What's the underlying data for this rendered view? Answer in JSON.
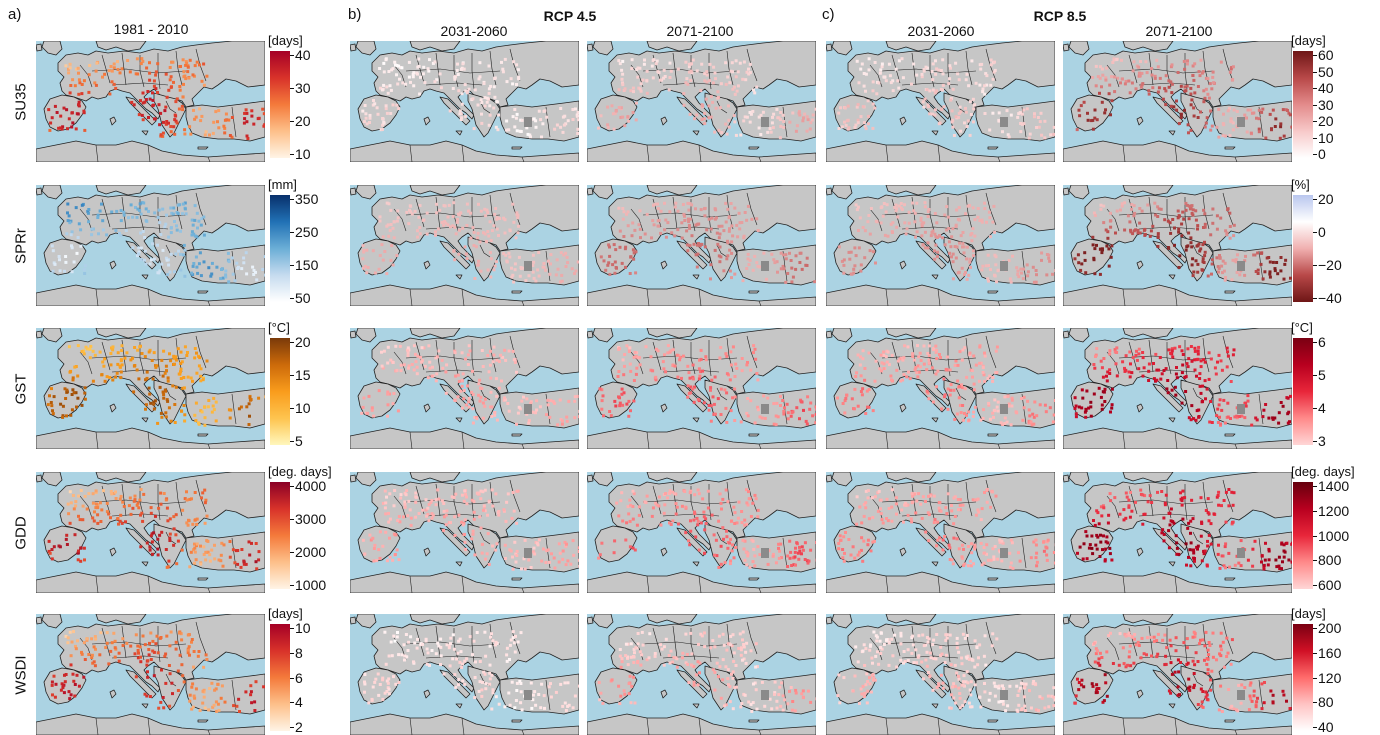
{
  "panel_labels": {
    "a": "a)",
    "b": "b)",
    "c": "c)"
  },
  "scenarios": {
    "rcp45": "RCP 4.5",
    "rcp85": "RCP 8.5"
  },
  "column_titles": {
    "baseline": "1981 - 2010",
    "rcp45_near": "2031-2060",
    "rcp45_far": "2071-2100",
    "rcp85_near": "2031-2060",
    "rcp85_far": "2071-2100"
  },
  "rows": [
    {
      "id": "su35",
      "label": "SU35"
    },
    {
      "id": "sprr",
      "label": "SPRr"
    },
    {
      "id": "gst",
      "label": "GST"
    },
    {
      "id": "gdd",
      "label": "GDD"
    },
    {
      "id": "wsdi",
      "label": "WSDI"
    }
  ],
  "colorbars": {
    "baseline": [
      {
        "unit": "[days]",
        "ticks": [
          "40",
          "30",
          "20",
          "10"
        ],
        "colors": [
          "#fff4e6",
          "#fdc08a",
          "#f47a3b",
          "#d8322a",
          "#a50026"
        ]
      },
      {
        "unit": "[mm]",
        "ticks": [
          "350",
          "250",
          "150",
          "50"
        ],
        "colors": [
          "#ffffff",
          "#c6dbef",
          "#6baed6",
          "#2171b5",
          "#08306b"
        ]
      },
      {
        "unit": "[°C]",
        "ticks": [
          "20",
          "15",
          "10",
          "5"
        ],
        "colors": [
          "#fff7bc",
          "#fec44f",
          "#f99c1c",
          "#cc6a0a",
          "#7a3a0a"
        ]
      },
      {
        "unit": "[deg. days]",
        "ticks": [
          "4000",
          "3000",
          "2000",
          "1000"
        ],
        "colors": [
          "#fff4e6",
          "#fdc08a",
          "#f47a3b",
          "#d8322a",
          "#8b0026"
        ]
      },
      {
        "unit": "[days]",
        "ticks": [
          "10",
          "8",
          "6",
          "4",
          "2"
        ],
        "colors": [
          "#fff4e6",
          "#fdc08a",
          "#f47a3b",
          "#d8322a",
          "#a50026"
        ]
      }
    ],
    "change": [
      {
        "unit": "[days]",
        "ticks": [
          "60",
          "50",
          "40",
          "30",
          "20",
          "10",
          "0"
        ],
        "colors": [
          "#ffffff",
          "#f7c9c9",
          "#e38b8b",
          "#b84848",
          "#6e1616"
        ]
      },
      {
        "unit": "[%]",
        "ticks": [
          "20",
          "0",
          "−20",
          "−40"
        ],
        "colors": [
          "#6e1616",
          "#b84848",
          "#f0b0b0",
          "#ffffff",
          "#b9c6ee"
        ]
      },
      {
        "unit": "[°C]",
        "ticks": [
          "6",
          "5",
          "4",
          "3"
        ],
        "colors": [
          "#ffd6d6",
          "#ff8a8a",
          "#e8263a",
          "#b8001f",
          "#7a0012"
        ]
      },
      {
        "unit": "[deg. days]",
        "ticks": [
          "1400",
          "1200",
          "1000",
          "800",
          "600"
        ],
        "colors": [
          "#ffd6d6",
          "#ff8a8a",
          "#e8263a",
          "#b8001f",
          "#66000d"
        ]
      },
      {
        "unit": "[days]",
        "ticks": [
          "200",
          "160",
          "120",
          "80",
          "40"
        ],
        "colors": [
          "#ffffff",
          "#ffc4c4",
          "#ff6b6b",
          "#d01025",
          "#7a0012"
        ]
      }
    ]
  },
  "colors": {
    "sea": "#abd3e3",
    "land": "#c6c6c6",
    "border": "#222222"
  }
}
